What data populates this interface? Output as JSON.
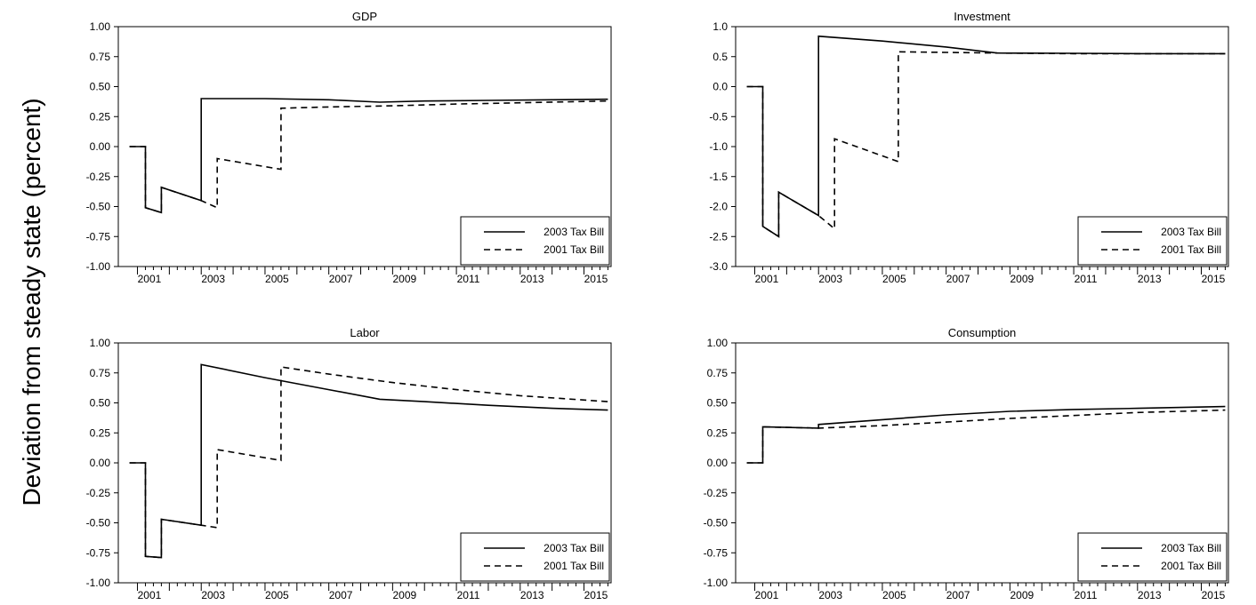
{
  "ylabel": "Deviation from steady state (percent)",
  "chart_data": [
    {
      "type": "line",
      "title": "GDP",
      "xlim": [
        2000.4,
        2015.85
      ],
      "ylim": [
        -1.0,
        1.0
      ],
      "yticks": [
        -1.0,
        -0.75,
        -0.5,
        -0.25,
        0.0,
        0.25,
        0.5,
        0.75,
        1.0
      ],
      "ytick_labels": [
        "-1.00",
        "-0.75",
        "-0.50",
        "-0.25",
        "0.00",
        "0.25",
        "0.50",
        "0.75",
        "1.00"
      ],
      "xtick_labels": [
        "2001",
        "2003",
        "2005",
        "2007",
        "2009",
        "2011",
        "2013",
        "2015"
      ],
      "grid": false,
      "legend_position": "bottom-right",
      "series": [
        {
          "name": "2003 Tax Bill",
          "style": "solid",
          "points": [
            [
              2000.75,
              0.0
            ],
            [
              2001.25,
              0.0
            ],
            [
              2001.25,
              -0.51
            ],
            [
              2001.75,
              -0.55
            ],
            [
              2001.75,
              -0.34
            ],
            [
              2003.0,
              -0.45
            ],
            [
              2003.0,
              0.4
            ],
            [
              2005.0,
              0.4
            ],
            [
              2007.0,
              0.39
            ],
            [
              2008.6,
              0.37
            ],
            [
              2010.0,
              0.38
            ],
            [
              2012.0,
              0.385
            ],
            [
              2014.0,
              0.39
            ],
            [
              2015.75,
              0.395
            ]
          ]
        },
        {
          "name": "2001 Tax Bill",
          "style": "dashed",
          "points": [
            [
              2000.75,
              0.0
            ],
            [
              2001.25,
              0.0
            ],
            [
              2001.25,
              -0.51
            ],
            [
              2001.75,
              -0.55
            ],
            [
              2001.75,
              -0.34
            ],
            [
              2003.0,
              -0.45
            ],
            [
              2003.5,
              -0.51
            ],
            [
              2003.5,
              -0.1
            ],
            [
              2005.5,
              -0.19
            ],
            [
              2005.5,
              0.32
            ],
            [
              2007.0,
              0.33
            ],
            [
              2009.0,
              0.34
            ],
            [
              2011.0,
              0.355
            ],
            [
              2013.0,
              0.365
            ],
            [
              2015.75,
              0.38
            ]
          ]
        }
      ]
    },
    {
      "type": "line",
      "title": "Investment",
      "xlim": [
        2000.4,
        2015.85
      ],
      "ylim": [
        -3.0,
        1.0
      ],
      "yticks": [
        -3.0,
        -2.5,
        -2.0,
        -1.5,
        -1.0,
        -0.5,
        0.0,
        0.5,
        1.0
      ],
      "ytick_labels": [
        "-3.0",
        "-2.5",
        "-2.0",
        "-1.5",
        "-1.0",
        "-0.5",
        "0.0",
        "0.5",
        "1.0"
      ],
      "xtick_labels": [
        "2001",
        "2003",
        "2005",
        "2007",
        "2009",
        "2011",
        "2013",
        "2015"
      ],
      "grid": false,
      "legend_position": "bottom-right",
      "series": [
        {
          "name": "2003 Tax Bill",
          "style": "solid",
          "points": [
            [
              2000.75,
              0.0
            ],
            [
              2001.25,
              0.0
            ],
            [
              2001.25,
              -2.33
            ],
            [
              2001.75,
              -2.5
            ],
            [
              2001.75,
              -1.76
            ],
            [
              2003.0,
              -2.15
            ],
            [
              2003.0,
              0.84
            ],
            [
              2005.0,
              0.76
            ],
            [
              2007.0,
              0.66
            ],
            [
              2008.6,
              0.56
            ],
            [
              2011.0,
              0.555
            ],
            [
              2013.0,
              0.55
            ],
            [
              2015.75,
              0.55
            ]
          ]
        },
        {
          "name": "2001 Tax Bill",
          "style": "dashed",
          "points": [
            [
              2000.75,
              0.0
            ],
            [
              2001.25,
              0.0
            ],
            [
              2001.25,
              -2.33
            ],
            [
              2001.75,
              -2.5
            ],
            [
              2001.75,
              -1.76
            ],
            [
              2003.0,
              -2.15
            ],
            [
              2003.5,
              -2.37
            ],
            [
              2003.5,
              -0.87
            ],
            [
              2005.5,
              -1.25
            ],
            [
              2005.5,
              0.58
            ],
            [
              2008.6,
              0.56
            ],
            [
              2011.0,
              0.55
            ],
            [
              2015.75,
              0.55
            ]
          ]
        }
      ]
    },
    {
      "type": "line",
      "title": "Labor",
      "xlim": [
        2000.4,
        2015.85
      ],
      "ylim": [
        -1.0,
        1.0
      ],
      "yticks": [
        -1.0,
        -0.75,
        -0.5,
        -0.25,
        0.0,
        0.25,
        0.5,
        0.75,
        1.0
      ],
      "ytick_labels": [
        "-1.00",
        "-0.75",
        "-0.50",
        "-0.25",
        "0.00",
        "0.25",
        "0.50",
        "0.75",
        "1.00"
      ],
      "xtick_labels": [
        "2001",
        "2003",
        "2005",
        "2007",
        "2009",
        "2011",
        "2013",
        "2015"
      ],
      "grid": false,
      "legend_position": "bottom-right",
      "series": [
        {
          "name": "2003 Tax Bill",
          "style": "solid",
          "points": [
            [
              2000.75,
              0.0
            ],
            [
              2001.25,
              0.0
            ],
            [
              2001.25,
              -0.78
            ],
            [
              2001.75,
              -0.79
            ],
            [
              2001.75,
              -0.47
            ],
            [
              2003.0,
              -0.52
            ],
            [
              2003.0,
              0.82
            ],
            [
              2005.0,
              0.71
            ],
            [
              2007.0,
              0.61
            ],
            [
              2008.6,
              0.53
            ],
            [
              2010.0,
              0.51
            ],
            [
              2012.0,
              0.48
            ],
            [
              2014.0,
              0.455
            ],
            [
              2015.75,
              0.44
            ]
          ]
        },
        {
          "name": "2001 Tax Bill",
          "style": "dashed",
          "points": [
            [
              2000.75,
              0.0
            ],
            [
              2001.25,
              0.0
            ],
            [
              2001.25,
              -0.78
            ],
            [
              2001.75,
              -0.79
            ],
            [
              2001.75,
              -0.47
            ],
            [
              2003.0,
              -0.52
            ],
            [
              2003.5,
              -0.54
            ],
            [
              2003.5,
              0.11
            ],
            [
              2005.5,
              0.02
            ],
            [
              2005.5,
              0.8
            ],
            [
              2007.0,
              0.74
            ],
            [
              2009.0,
              0.67
            ],
            [
              2011.0,
              0.61
            ],
            [
              2013.0,
              0.56
            ],
            [
              2015.75,
              0.51
            ]
          ]
        }
      ]
    },
    {
      "type": "line",
      "title": "Consumption",
      "xlim": [
        2000.4,
        2015.85
      ],
      "ylim": [
        -1.0,
        1.0
      ],
      "yticks": [
        -1.0,
        -0.75,
        -0.5,
        -0.25,
        0.0,
        0.25,
        0.5,
        0.75,
        1.0
      ],
      "ytick_labels": [
        "-1.00",
        "-0.75",
        "-0.50",
        "-0.25",
        "0.00",
        "0.25",
        "0.50",
        "0.75",
        "1.00"
      ],
      "xtick_labels": [
        "2001",
        "2003",
        "2005",
        "2007",
        "2009",
        "2011",
        "2013",
        "2015"
      ],
      "grid": false,
      "legend_position": "bottom-right",
      "series": [
        {
          "name": "2003 Tax Bill",
          "style": "solid",
          "points": [
            [
              2000.75,
              0.0
            ],
            [
              2001.25,
              0.0
            ],
            [
              2001.25,
              0.3
            ],
            [
              2003.0,
              0.29
            ],
            [
              2003.0,
              0.32
            ],
            [
              2005.0,
              0.36
            ],
            [
              2007.0,
              0.4
            ],
            [
              2009.0,
              0.43
            ],
            [
              2011.0,
              0.445
            ],
            [
              2013.0,
              0.455
            ],
            [
              2015.75,
              0.47
            ]
          ]
        },
        {
          "name": "2001 Tax Bill",
          "style": "dashed",
          "points": [
            [
              2000.75,
              0.0
            ],
            [
              2001.25,
              0.0
            ],
            [
              2001.25,
              0.3
            ],
            [
              2003.0,
              0.29
            ],
            [
              2005.0,
              0.31
            ],
            [
              2007.0,
              0.34
            ],
            [
              2009.0,
              0.37
            ],
            [
              2011.0,
              0.395
            ],
            [
              2013.0,
              0.42
            ],
            [
              2015.75,
              0.44
            ]
          ]
        }
      ]
    }
  ]
}
